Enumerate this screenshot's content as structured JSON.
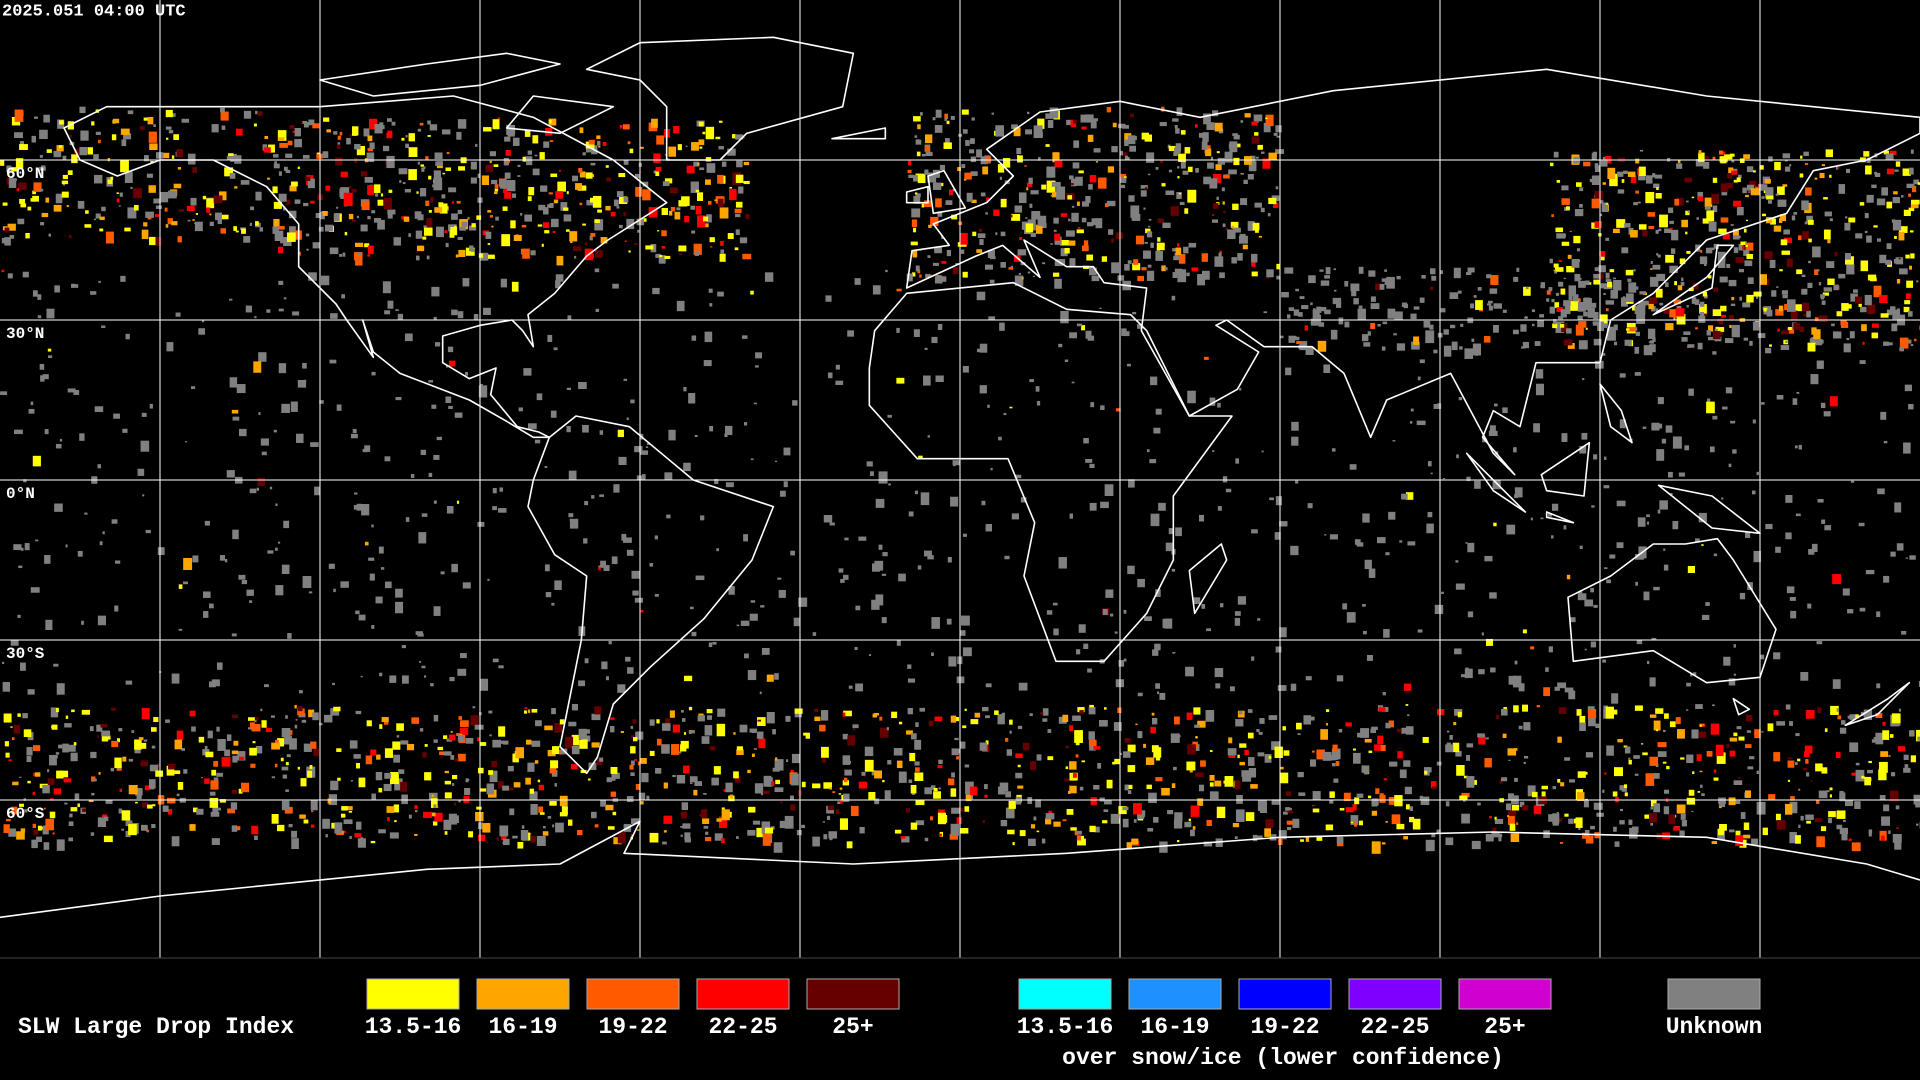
{
  "timestamp": "2025.051 04:00 UTC",
  "latitude_labels": [
    "60°N",
    "30°N",
    "0°N",
    "30°S",
    "60°S"
  ],
  "legend": {
    "title": "SLW Large Drop Index",
    "items": [
      {
        "label": "13.5-16",
        "color": "#ffff00"
      },
      {
        "label": "16-19",
        "color": "#ffa500"
      },
      {
        "label": "19-22",
        "color": "#ff5a00"
      },
      {
        "label": "22-25",
        "color": "#ff0000"
      },
      {
        "label": "25+",
        "color": "#660000"
      }
    ],
    "snow_ice_items": [
      {
        "label": "13.5-16",
        "color": "#00ffff"
      },
      {
        "label": "16-19",
        "color": "#1e90ff"
      },
      {
        "label": "19-22",
        "color": "#0000ff"
      },
      {
        "label": "22-25",
        "color": "#7f00ff"
      },
      {
        "label": "25+",
        "color": "#d000d0"
      }
    ],
    "snow_ice_note": "over snow/ice (lower confidence)",
    "unknown": {
      "label": "Unknown",
      "color": "#808080"
    }
  }
}
